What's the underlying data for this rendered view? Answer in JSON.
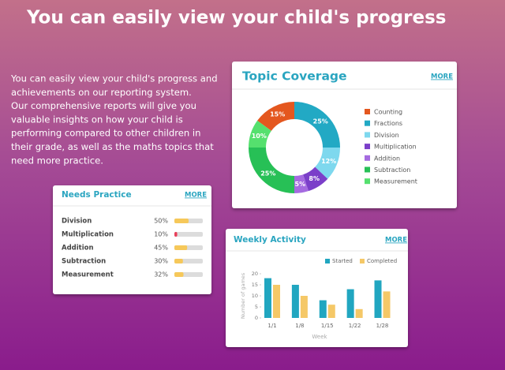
{
  "header": {
    "title": "You can easily view your child's progress"
  },
  "intro": {
    "lines": [
      "You can easily view your child's progress and",
      "achievements on our reporting system.",
      "Our comprehensive reports will give you",
      "valuable insights on how your child is",
      "performing compared to other children in",
      "their grade, as well as the maths topics that",
      "need more practice."
    ]
  },
  "topic_coverage": {
    "type": "pie",
    "title": "Topic Coverage",
    "more": "MORE",
    "categories": [
      "Counting",
      "Fractions",
      "Division",
      "Multiplication",
      "Addition",
      "Subtraction",
      "Measurement"
    ],
    "values": [
      15,
      25,
      12,
      8,
      5,
      25,
      10
    ],
    "value_labels": [
      "15%",
      "25%",
      "12%",
      "8%",
      "5%",
      "25%",
      "10%"
    ],
    "colors": [
      "#e4571f",
      "#22a9c4",
      "#7ed8ee",
      "#7b3fc9",
      "#a56be0",
      "#27c056",
      "#55e06e"
    ]
  },
  "needs_practice": {
    "type": "bar",
    "title": "Needs Practice",
    "more": "MORE",
    "categories": [
      "Division",
      "Multiplication",
      "Addition",
      "Subtraction",
      "Measurement"
    ],
    "values": [
      50,
      10,
      45,
      30,
      32
    ],
    "value_labels": [
      "50%",
      "10%",
      "45%",
      "30%",
      "32%"
    ],
    "colors": [
      "#f6c85a",
      "#e8405a",
      "#f6c85a",
      "#f6c85a",
      "#f6c85a"
    ]
  },
  "weekly_activity": {
    "type": "bar",
    "title": "Weekly Activity",
    "more": "MORE",
    "categories": [
      "1/1",
      "1/8",
      "1/15",
      "1/22",
      "1/28"
    ],
    "series": [
      {
        "name": "Started",
        "color": "#21a6c0",
        "values": [
          18,
          15,
          8,
          13,
          17
        ]
      },
      {
        "name": "Completed",
        "color": "#f5c867",
        "values": [
          15,
          10,
          6,
          4,
          12
        ]
      }
    ],
    "ylim": [
      0,
      20
    ],
    "yticks": [
      0,
      5,
      10,
      15,
      20
    ],
    "ylabel": "Number of games",
    "xlabel": "Week"
  }
}
